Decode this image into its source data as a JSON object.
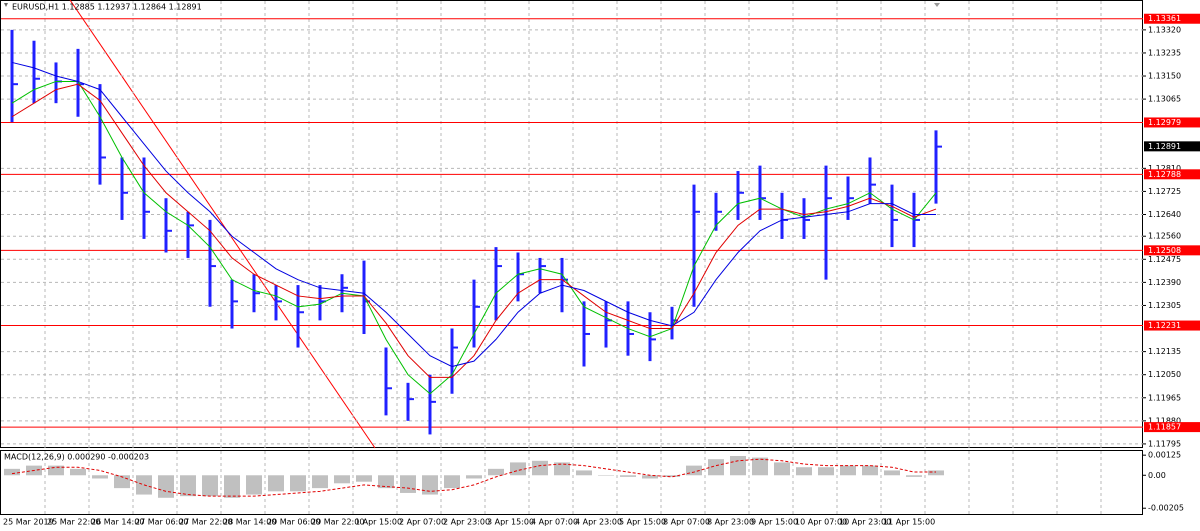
{
  "chart_data": [
    {
      "type": "hlc",
      "title": "EURUSD,H1 1.12885 1.12937 1.12864 1.12891",
      "categories": [
        "25 Mar 2019",
        null,
        "25 Mar 22:00",
        null,
        "26 Mar 14:00",
        null,
        "27 Mar 06:00",
        null,
        "27 Mar 22:00",
        null,
        "28 Mar 14:00",
        null,
        "29 Mar 06:00",
        null,
        "29 Mar 22:00",
        null,
        "1 Apr 15:00",
        null,
        "2 Apr 07:00",
        null,
        "2 Apr 23:00",
        null,
        "3 Apr 15:00",
        null,
        "4 Apr 07:00",
        null,
        "4 Apr 23:00",
        null,
        "5 Apr 15:00",
        null,
        "8 Apr 07:00",
        null,
        "8 Apr 23:00",
        null,
        "9 Apr 15:00",
        null,
        "10 Apr 07:00",
        null,
        "10 Apr 23:00",
        null,
        "11 Apr 15:00",
        null,
        null
      ],
      "color": "#2020ff",
      "high": [
        1.1332,
        1.1328,
        1.132,
        1.1325,
        1.1312,
        1.1285,
        1.1285,
        1.127,
        1.1265,
        1.1262,
        1.124,
        1.1242,
        1.1238,
        1.1238,
        1.1238,
        1.1242,
        1.1247,
        1.1215,
        1.1202,
        1.1205,
        1.1222,
        1.124,
        1.1252,
        1.125,
        1.1248,
        1.1248,
        1.1232,
        1.1232,
        1.1232,
        1.1228,
        1.123,
        1.1275,
        1.1272,
        1.128,
        1.1282,
        1.1272,
        1.127,
        1.1282,
        1.1278,
        1.1285,
        1.1275,
        1.1272,
        1.1295
      ],
      "low": [
        1.1298,
        1.1305,
        1.1305,
        1.13,
        1.1275,
        1.1262,
        1.1255,
        1.125,
        1.1248,
        1.123,
        1.1222,
        1.1228,
        1.1225,
        1.1215,
        1.1225,
        1.1228,
        1.122,
        1.119,
        1.1188,
        1.1183,
        1.1198,
        1.1215,
        1.1225,
        1.1232,
        1.1235,
        1.1228,
        1.1208,
        1.1215,
        1.1212,
        1.121,
        1.1218,
        1.123,
        1.1258,
        1.1262,
        1.1262,
        1.1255,
        1.1255,
        1.124,
        1.1262,
        1.1268,
        1.1252,
        1.1252,
        1.1268
      ],
      "close": [
        1.1312,
        1.1314,
        1.1313,
        1.1312,
        1.1285,
        1.1272,
        1.1265,
        1.1258,
        1.126,
        1.1245,
        1.1232,
        1.1235,
        1.1232,
        1.1228,
        1.1232,
        1.1237,
        1.1232,
        1.12,
        1.1196,
        1.1195,
        1.1215,
        1.123,
        1.1245,
        1.1242,
        1.1245,
        1.124,
        1.122,
        1.1225,
        1.122,
        1.1218,
        1.1225,
        1.1265,
        1.1265,
        1.1272,
        1.127,
        1.1262,
        1.1262,
        1.127,
        1.127,
        1.1275,
        1.1262,
        1.1262,
        1.1289
      ],
      "series": [
        {
          "color": "#00c000",
          "values": [
            1.1305,
            1.131,
            1.1313,
            1.1313,
            1.13,
            1.1285,
            1.1272,
            1.1265,
            1.126,
            1.1252,
            1.124,
            1.1236,
            1.1234,
            1.123,
            1.1231,
            1.1235,
            1.1234,
            1.1218,
            1.1205,
            1.1198,
            1.1205,
            1.122,
            1.1235,
            1.1242,
            1.1244,
            1.1242,
            1.123,
            1.1226,
            1.1222,
            1.1219,
            1.1222,
            1.1245,
            1.126,
            1.1268,
            1.127,
            1.1266,
            1.1263,
            1.1266,
            1.1268,
            1.1272,
            1.1266,
            1.1262,
            1.1272
          ]
        },
        {
          "color": "#e00000",
          "values": [
            1.13,
            1.1305,
            1.131,
            1.1312,
            1.1306,
            1.1294,
            1.1282,
            1.1272,
            1.1265,
            1.1258,
            1.1248,
            1.1242,
            1.1238,
            1.1234,
            1.1233,
            1.1234,
            1.1234,
            1.1224,
            1.1212,
            1.1204,
            1.1204,
            1.1212,
            1.1225,
            1.1235,
            1.124,
            1.124,
            1.1234,
            1.1228,
            1.1225,
            1.1222,
            1.1222,
            1.1235,
            1.125,
            1.126,
            1.1266,
            1.1266,
            1.1264,
            1.1265,
            1.1267,
            1.127,
            1.1267,
            1.1263,
            1.1266
          ]
        },
        {
          "color": "#0000e0",
          "values": [
            1.132,
            1.1318,
            1.1315,
            1.1313,
            1.131,
            1.13,
            1.129,
            1.128,
            1.1272,
            1.1265,
            1.1256,
            1.125,
            1.1244,
            1.124,
            1.1237,
            1.1236,
            1.1235,
            1.1228,
            1.122,
            1.1212,
            1.1208,
            1.121,
            1.1218,
            1.1228,
            1.1235,
            1.1238,
            1.1236,
            1.1232,
            1.1228,
            1.1225,
            1.1223,
            1.1228,
            1.124,
            1.125,
            1.1258,
            1.1262,
            1.1263,
            1.1264,
            1.1265,
            1.1268,
            1.1268,
            1.1264,
            1.1264
          ]
        }
      ],
      "ylim": [
        1.1178,
        1.1343
      ],
      "yticks": [
        {
          "value": 1.1332,
          "label": "1.13320"
        },
        {
          "value": 1.13235,
          "label": "1.13235"
        },
        {
          "value": 1.1315,
          "label": "1.13150"
        },
        {
          "value": 1.13065,
          "label": "1.13065"
        },
        {
          "value": 1.1281,
          "label": "1.12810"
        },
        {
          "value": 1.12725,
          "label": "1.12725"
        },
        {
          "value": 1.1264,
          "label": "1.12640"
        },
        {
          "value": 1.1256,
          "label": "1.12560"
        },
        {
          "value": 1.12475,
          "label": "1.12475"
        },
        {
          "value": 1.1239,
          "label": "1.12390"
        },
        {
          "value": 1.12305,
          "label": "1.12305"
        },
        {
          "value": 1.12135,
          "label": "1.12135"
        },
        {
          "value": 1.1205,
          "label": "1.12050"
        },
        {
          "value": 1.11965,
          "label": "1.11965"
        },
        {
          "value": 1.1188,
          "label": "1.11880"
        },
        {
          "value": 1.11795,
          "label": "1.11795"
        }
      ],
      "levels": [
        {
          "value": 1.13361,
          "label": "1.13361"
        },
        {
          "value": 1.12979,
          "label": "1.12979"
        },
        {
          "value": 1.12788,
          "label": "1.12788"
        },
        {
          "value": 1.12508,
          "label": "1.12508"
        },
        {
          "value": 1.12231,
          "label": "1.12231"
        },
        {
          "value": 1.11857,
          "label": "1.11857"
        }
      ],
      "level_color": "#ff0000",
      "last_price": {
        "value": 1.12891,
        "label": "1.12891"
      },
      "grid": true
    },
    {
      "type": "macd",
      "title": "MACD(12,26,9) 0.000290 -0.000203",
      "color": "#c0c0c0",
      "values": [
        0.0004,
        0.0006,
        0.0006,
        0.0004,
        -0.0002,
        -0.0008,
        -0.0012,
        -0.0014,
        -0.0013,
        -0.0013,
        -0.0014,
        -0.0012,
        -0.001,
        -0.001,
        -0.0008,
        -0.0005,
        -0.0004,
        -0.0008,
        -0.0011,
        -0.0012,
        -0.0008,
        -0.0002,
        0.0004,
        0.0008,
        0.0009,
        0.0008,
        0.0003,
        0.0,
        -0.0001,
        -0.0002,
        -0.0001,
        0.0006,
        0.001,
        0.0012,
        0.0011,
        0.0008,
        0.0005,
        0.0005,
        0.0006,
        0.0006,
        0.0003,
        -0.0001,
        0.0003
      ],
      "signal": {
        "color": "#e00000",
        "values": [
          0.0001,
          0.0003,
          0.0005,
          0.0005,
          0.0003,
          -0.0001,
          -0.0006,
          -0.001,
          -0.0012,
          -0.0013,
          -0.0013,
          -0.0013,
          -0.0012,
          -0.0011,
          -0.001,
          -0.0008,
          -0.0006,
          -0.0007,
          -0.0008,
          -0.001,
          -0.0009,
          -0.0006,
          -0.0001,
          0.0003,
          0.0006,
          0.0007,
          0.0006,
          0.0004,
          0.0002,
          0.0,
          -0.0001,
          0.0002,
          0.0006,
          0.0009,
          0.001,
          0.0009,
          0.0007,
          0.0006,
          0.0006,
          0.0006,
          0.0005,
          0.0002,
          0.0002
        ]
      },
      "ylim": [
        -0.00241,
        0.00151
      ],
      "yticks": [
        {
          "value": 0.00125,
          "label": "0.00125"
        },
        {
          "value": 0,
          "label": "0.00"
        },
        {
          "value": -0.00205,
          "label": "-0.00205"
        }
      ]
    }
  ]
}
